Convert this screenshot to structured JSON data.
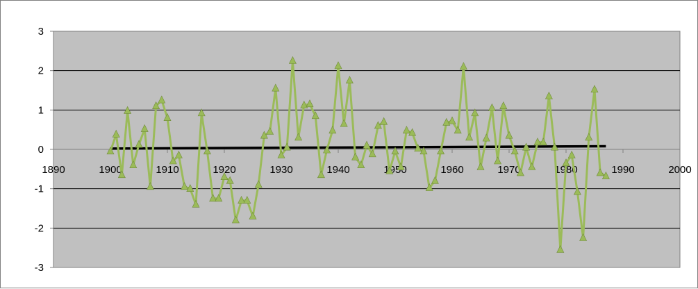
{
  "chart_data": {
    "type": "line",
    "title": "",
    "xlabel": "",
    "ylabel": "",
    "xlim": [
      1890,
      2000
    ],
    "ylim": [
      -3,
      3
    ],
    "x_ticks": [
      "1890",
      "1900",
      "1910",
      "1920",
      "1930",
      "1940",
      "1950",
      "1960",
      "1970",
      "1980",
      "1990",
      "2000"
    ],
    "y_ticks": [
      "3",
      "2",
      "1",
      "0",
      "-1",
      "-2",
      "-3"
    ],
    "grid": "horizontal",
    "legend": "none",
    "colors": {
      "plot_area": "#c0c0c0",
      "series": "#9bbb59",
      "trend": "#000000",
      "gridline": "#000000"
    },
    "series": [
      {
        "marker": "triangle",
        "x": [
          1900,
          1901,
          1902,
          1903,
          1904,
          1905,
          1906,
          1907,
          1908,
          1909,
          1910,
          1911,
          1912,
          1913,
          1914,
          1915,
          1916,
          1917,
          1918,
          1919,
          1920,
          1921,
          1922,
          1923,
          1924,
          1925,
          1926,
          1927,
          1928,
          1929,
          1930,
          1931,
          1932,
          1933,
          1934,
          1935,
          1936,
          1937,
          1938,
          1939,
          1940,
          1941,
          1942,
          1943,
          1944,
          1945,
          1946,
          1947,
          1948,
          1949,
          1950,
          1951,
          1952,
          1953,
          1954,
          1955,
          1956,
          1957,
          1958,
          1959,
          1960,
          1961,
          1962,
          1963,
          1964,
          1965,
          1966,
          1967,
          1968,
          1969,
          1970,
          1971,
          1972,
          1973,
          1974,
          1975,
          1976,
          1977,
          1978,
          1979,
          1980,
          1981,
          1982,
          1983,
          1984,
          1985,
          1986,
          1987
        ],
        "y": [
          -0.05,
          0.38,
          -0.65,
          0.98,
          -0.4,
          0.12,
          0.52,
          -0.95,
          1.1,
          1.25,
          0.8,
          -0.3,
          -0.15,
          -0.95,
          -1.0,
          -1.4,
          0.92,
          -0.05,
          -1.25,
          -1.25,
          -0.7,
          -0.8,
          -1.8,
          -1.3,
          -1.3,
          -1.7,
          -0.9,
          0.35,
          0.45,
          1.55,
          -0.15,
          0.05,
          2.25,
          0.3,
          1.12,
          1.15,
          0.85,
          -0.65,
          -0.02,
          0.48,
          2.12,
          0.65,
          1.75,
          -0.2,
          -0.4,
          0.1,
          -0.12,
          0.6,
          0.7,
          -0.55,
          -0.05,
          -0.45,
          0.48,
          0.42,
          0.02,
          -0.05,
          -0.98,
          -0.8,
          -0.05,
          0.68,
          0.72,
          0.48,
          2.1,
          0.3,
          0.92,
          -0.45,
          0.28,
          1.05,
          -0.3,
          1.1,
          0.35,
          -0.05,
          -0.6,
          0.05,
          -0.45,
          0.18,
          0.18,
          1.35,
          0.05,
          -2.55,
          -0.35,
          -0.15,
          -1.08,
          -2.25,
          0.3,
          1.52,
          -0.6,
          -0.68
        ]
      }
    ],
    "trendline": {
      "x": [
        1900,
        1987
      ],
      "y": [
        0.02,
        0.08
      ]
    }
  }
}
